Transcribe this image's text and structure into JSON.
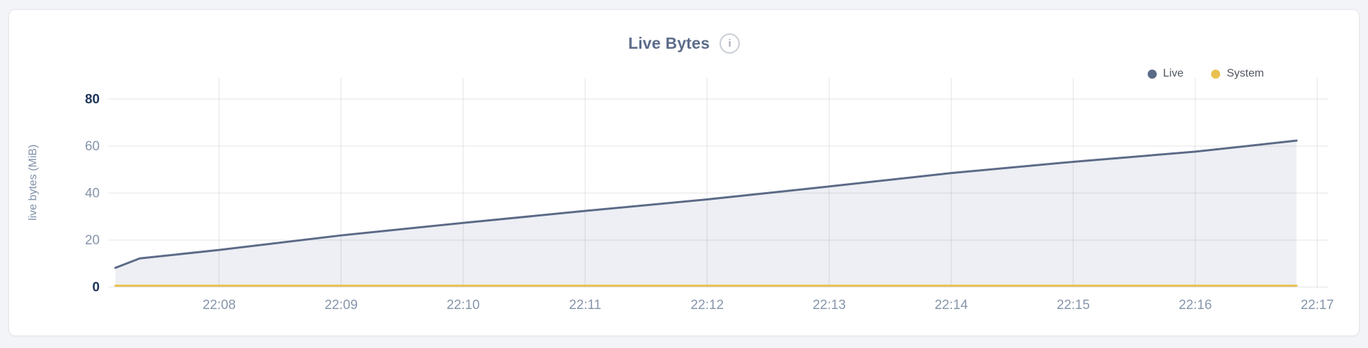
{
  "card": {
    "title": "Live Bytes",
    "info_icon_glyph": "i"
  },
  "legend": [
    {
      "label": "Live",
      "color": "#5b6a87"
    },
    {
      "label": "System",
      "color": "#e9c150"
    }
  ],
  "colors": {
    "page_bg": "#f3f4f7",
    "card_bg": "#ffffff",
    "card_border": "#e4e6ea",
    "title": "#5d6c8a",
    "tick": "#8694aa",
    "tick_bold": "#1d3357",
    "axis_title": "#8090a8",
    "grid": "rgba(0,0,0,0.07)",
    "live_line": "#5b6a87",
    "live_fill": "#edeff4",
    "system_line": "#e9c150"
  },
  "chart_data": {
    "type": "area",
    "title": "Live Bytes",
    "xlabel": "",
    "ylabel": "live bytes (MiB)",
    "ylim": [
      0,
      80
    ],
    "x_range": [
      7.09,
      17.09
    ],
    "x_unit": "minutes past 22:00",
    "grid": true,
    "legend_position": "top-right",
    "yticks": [
      {
        "v": 0,
        "label": "0",
        "bold": true
      },
      {
        "v": 20,
        "label": "20",
        "bold": false
      },
      {
        "v": 40,
        "label": "40",
        "bold": false
      },
      {
        "v": 60,
        "label": "60",
        "bold": false
      },
      {
        "v": 80,
        "label": "80",
        "bold": true
      }
    ],
    "xticks": [
      {
        "t": 8,
        "label": "22:08"
      },
      {
        "t": 9,
        "label": "22:09"
      },
      {
        "t": 10,
        "label": "22:10"
      },
      {
        "t": 11,
        "label": "22:11"
      },
      {
        "t": 12,
        "label": "22:12"
      },
      {
        "t": 13,
        "label": "22:13"
      },
      {
        "t": 14,
        "label": "22:14"
      },
      {
        "t": 15,
        "label": "22:15"
      },
      {
        "t": 16,
        "label": "22:16"
      },
      {
        "t": 17,
        "label": "22:17"
      }
    ],
    "series": [
      {
        "name": "Live",
        "color": "#5b6a87",
        "fill": "#edeff4",
        "line_width": 3,
        "points": [
          [
            7.15,
            8.2
          ],
          [
            7.35,
            12.2
          ],
          [
            8.0,
            15.8
          ],
          [
            9.0,
            22.0
          ],
          [
            10.0,
            27.3
          ],
          [
            11.0,
            32.4
          ],
          [
            12.0,
            37.3
          ],
          [
            13.0,
            42.8
          ],
          [
            14.0,
            48.5
          ],
          [
            15.0,
            53.3
          ],
          [
            16.0,
            57.6
          ],
          [
            16.83,
            62.3
          ]
        ]
      },
      {
        "name": "System",
        "color": "#e9c150",
        "fill": null,
        "line_width": 3,
        "points": [
          [
            7.15,
            0.6
          ],
          [
            16.83,
            0.6
          ]
        ]
      }
    ]
  }
}
